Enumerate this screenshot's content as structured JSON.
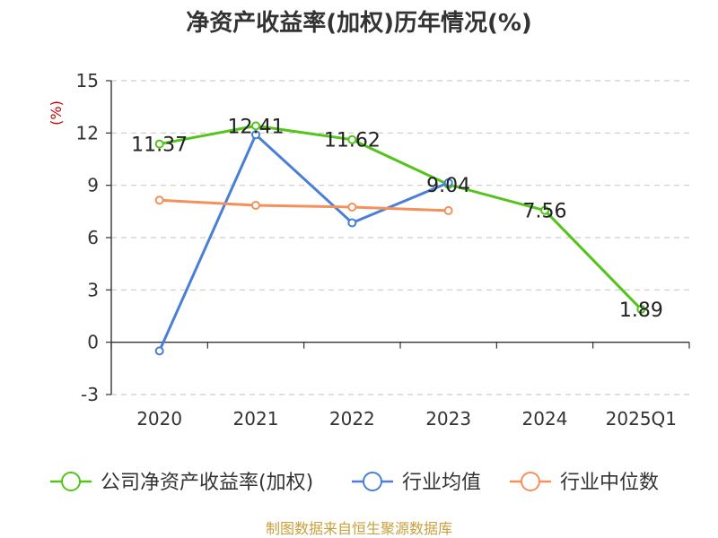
{
  "title": "净资产收益率(加权)历年情况(%)",
  "unit_label": "(%)",
  "source": "制图数据来自恒生聚源数据库",
  "chart_data": {
    "type": "line",
    "categories": [
      "2020",
      "2021",
      "2022",
      "2023",
      "2024",
      "2025Q1"
    ],
    "ylim": [
      -3,
      15
    ],
    "yticks": [
      -3,
      0,
      3,
      6,
      9,
      12,
      15
    ],
    "ytick_labels": [
      "-3",
      "0",
      "3",
      "6",
      "9",
      "12",
      "15"
    ],
    "grid": true,
    "legend_position": "bottom",
    "series": [
      {
        "name": "公司净资产收益率(加权)",
        "color": "#52c41a",
        "values": [
          11.37,
          12.41,
          11.62,
          9.04,
          7.56,
          1.89
        ],
        "labels": [
          "11.37",
          "12.41",
          "11.62",
          "9.04",
          "7.56",
          "1.89"
        ]
      },
      {
        "name": "行业均值",
        "color": "#4a7fd6",
        "values": [
          -0.5,
          11.9,
          6.85,
          9.15,
          null,
          null
        ]
      },
      {
        "name": "行业中位数",
        "color": "#f4915a",
        "values": [
          8.15,
          7.85,
          7.75,
          7.55,
          null,
          null
        ]
      }
    ]
  }
}
